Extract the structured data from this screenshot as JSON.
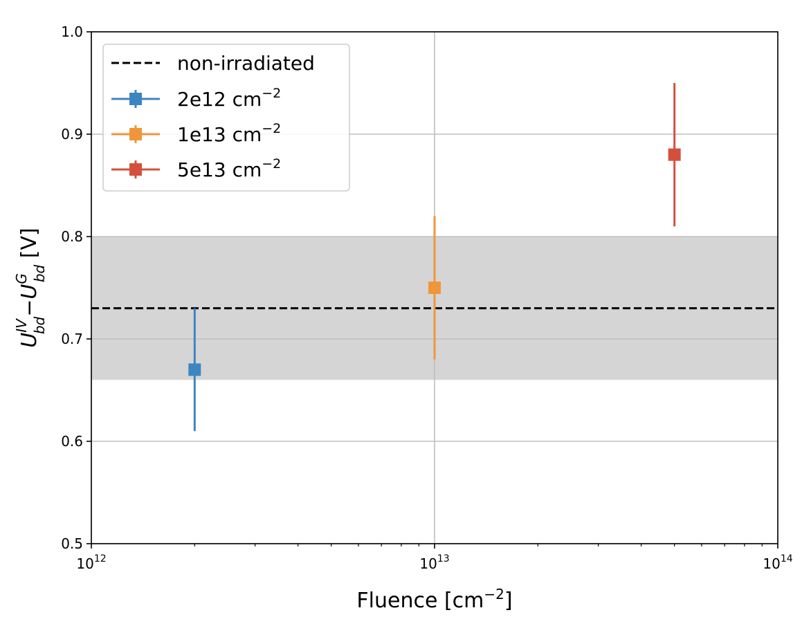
{
  "chart_data": {
    "type": "scatter",
    "xlabel": {
      "text": "Fluence [cm",
      "sup": "−2",
      "close": "]"
    },
    "ylabel": {
      "main1": "U",
      "sup1": "IV",
      "sub1": "bd",
      "minus": "−",
      "main2": "U",
      "sup2": "G",
      "sub2": "bd",
      "unit": " [V]"
    },
    "x_scale": "log",
    "xlim": [
      1000000000000.0,
      100000000000000.0
    ],
    "ylim": [
      0.5,
      1.0
    ],
    "grid": true,
    "legend_position": "upper-left",
    "x_ticks": [
      {
        "value": 1000000000000.0,
        "base": "10",
        "exp": "12"
      },
      {
        "value": 10000000000000.0,
        "base": "10",
        "exp": "13"
      },
      {
        "value": 100000000000000.0,
        "base": "10",
        "exp": "14"
      }
    ],
    "y_ticks": [
      {
        "value": 0.5,
        "label": "0.5"
      },
      {
        "value": 0.6,
        "label": "0.6"
      },
      {
        "value": 0.7,
        "label": "0.7"
      },
      {
        "value": 0.8,
        "label": "0.8"
      },
      {
        "value": 0.9,
        "label": "0.9"
      },
      {
        "value": 1.0,
        "label": "1.0"
      }
    ],
    "reference": {
      "name": "non-irradiated",
      "value": 0.73,
      "band": [
        0.66,
        0.8
      ],
      "line_color": "#000000",
      "band_color": "#d5d5d5"
    },
    "series": [
      {
        "name": "2e12 cm",
        "sup": "−2",
        "color": "#3d85c0",
        "x": 2000000000000.0,
        "y": 0.67,
        "yerr_low": 0.61,
        "yerr_high": 0.73
      },
      {
        "name": "1e13 cm",
        "sup": "−2",
        "color": "#f0963a",
        "x": 10000000000000.0,
        "y": 0.75,
        "yerr_low": 0.68,
        "yerr_high": 0.82
      },
      {
        "name": "5e13 cm",
        "sup": "−2",
        "color": "#d4503e",
        "x": 50000000000000.0,
        "y": 0.88,
        "yerr_low": 0.81,
        "yerr_high": 0.95
      }
    ]
  }
}
